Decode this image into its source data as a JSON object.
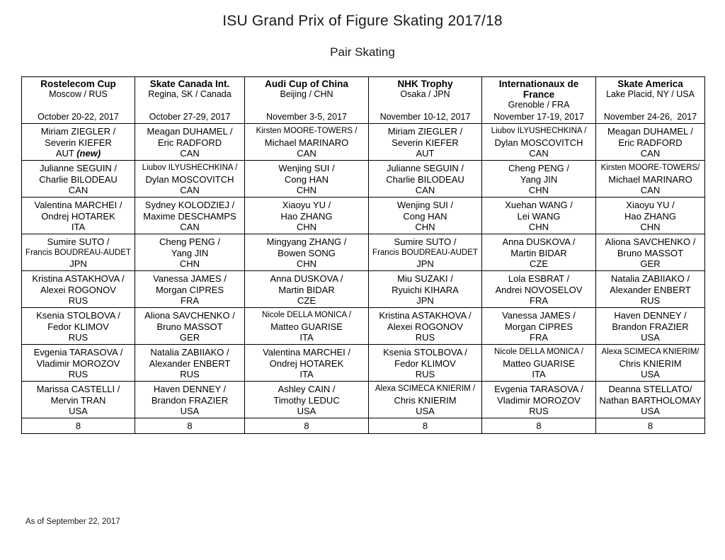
{
  "page": {
    "title": "ISU Grand Prix of Figure Skating 2017/18",
    "subtitle": "Pair Skating",
    "footnote": "As of September 22, 2017"
  },
  "table": {
    "events": [
      {
        "name": "Rostelecom Cup",
        "location": "Moscow / RUS",
        "date": "October 20-22, 2017"
      },
      {
        "name": "Skate Canada Int.",
        "location": "Regina, SK / Canada",
        "date": "October 27-29, 2017"
      },
      {
        "name": "Audi Cup of China",
        "location": "Beijing / CHN",
        "date": "November 3-5, 2017"
      },
      {
        "name": "NHK Trophy",
        "location": "Osaka / JPN",
        "date": "November 10-12, 2017"
      },
      {
        "name": "Internationaux de France",
        "location": "Grenoble / FRA",
        "date": "November 17-19, 2017"
      },
      {
        "name": "Skate America",
        "location": "Lake Placid, NY / USA",
        "date": "November 24-26,  2017"
      }
    ],
    "rows": [
      [
        {
          "lines": [
            "Miriam ZIEGLER /",
            "Severin KIEFER",
            "AUT"
          ],
          "note": "(new)"
        },
        {
          "lines": [
            "Meagan DUHAMEL /",
            "Eric RADFORD",
            "CAN"
          ]
        },
        {
          "lines": [
            "Kirsten MOORE-TOWERS /",
            "Michael MARINARO",
            "CAN"
          ]
        },
        {
          "lines": [
            "Miriam ZIEGLER /",
            "Severin KIEFER",
            "AUT"
          ]
        },
        {
          "lines": [
            "Liubov ILYUSHECHKINA /",
            "Dylan MOSCOVITCH",
            "CAN"
          ]
        },
        {
          "lines": [
            "Meagan DUHAMEL /",
            "Eric RADFORD",
            "CAN"
          ]
        }
      ],
      [
        {
          "lines": [
            "Julianne SEGUIN /",
            "Charlie BILODEAU",
            "CAN"
          ]
        },
        {
          "lines": [
            "Liubov ILYUSHECHKINA /",
            "Dylan MOSCOVITCH",
            "CAN"
          ]
        },
        {
          "lines": [
            "Wenjing SUI /",
            "Cong HAN",
            "CHN"
          ]
        },
        {
          "lines": [
            "Julianne SEGUIN /",
            "Charlie BILODEAU",
            "CAN"
          ]
        },
        {
          "lines": [
            "Cheng PENG /",
            "Yang JIN",
            "CHN"
          ]
        },
        {
          "lines": [
            "Kirsten MOORE-TOWERS/",
            "Michael MARINARO",
            "CAN"
          ]
        }
      ],
      [
        {
          "lines": [
            "Valentina MARCHEI /",
            "Ondrej HOTAREK",
            "ITA"
          ]
        },
        {
          "lines": [
            "Sydney KOLODZIEJ /",
            "Maxime DESCHAMPS",
            "CAN"
          ]
        },
        {
          "lines": [
            "Xiaoyu YU /",
            "Hao ZHANG",
            "CHN"
          ]
        },
        {
          "lines": [
            "Wenjing SUI /",
            "Cong HAN",
            "CHN"
          ]
        },
        {
          "lines": [
            "Xuehan WANG /",
            "Lei WANG",
            "CHN"
          ]
        },
        {
          "lines": [
            "Xiaoyu YU /",
            "Hao ZHANG",
            "CHN"
          ]
        }
      ],
      [
        {
          "lines": [
            "Sumire SUTO /",
            "Francis BOUDREAU-AUDET",
            "JPN"
          ]
        },
        {
          "lines": [
            "Cheng PENG /",
            "Yang JIN",
            "CHN"
          ]
        },
        {
          "lines": [
            "Mingyang ZHANG /",
            "Bowen SONG",
            "CHN"
          ]
        },
        {
          "lines": [
            "Sumire SUTO /",
            "Francis BOUDREAU-AUDET",
            "JPN"
          ]
        },
        {
          "lines": [
            "Anna DUSKOVA /",
            "Martin BIDAR",
            "CZE"
          ]
        },
        {
          "lines": [
            "Aliona SAVCHENKO /",
            "Bruno MASSOT",
            "GER"
          ]
        }
      ],
      [
        {
          "lines": [
            "Kristina ASTAKHOVA /",
            "Alexei ROGONOV",
            "RUS"
          ]
        },
        {
          "lines": [
            "Vanessa JAMES /",
            "Morgan CIPRES",
            "FRA"
          ]
        },
        {
          "lines": [
            "Anna DUSKOVA /",
            "Martin BIDAR",
            "CZE"
          ]
        },
        {
          "lines": [
            "Miu SUZAKI /",
            "Ryuichi KIHARA",
            "JPN"
          ]
        },
        {
          "lines": [
            "Lola ESBRAT /",
            "Andrei NOVOSELOV",
            "FRA"
          ]
        },
        {
          "lines": [
            "Natalia ZABIIAKO /",
            "Alexander ENBERT",
            "RUS"
          ]
        }
      ],
      [
        {
          "lines": [
            "Ksenia STOLBOVA /",
            "Fedor KLIMOV",
            "RUS"
          ]
        },
        {
          "lines": [
            "Aliona SAVCHENKO /",
            "Bruno MASSOT",
            "GER"
          ]
        },
        {
          "lines": [
            "Nicole DELLA MONICA /",
            "Matteo GUARISE",
            "ITA"
          ]
        },
        {
          "lines": [
            "Kristina ASTAKHOVA /",
            "Alexei ROGONOV",
            "RUS"
          ]
        },
        {
          "lines": [
            "Vanessa JAMES /",
            "Morgan CIPRES",
            "FRA"
          ]
        },
        {
          "lines": [
            "Haven DENNEY /",
            "Brandon FRAZIER",
            "USA"
          ]
        }
      ],
      [
        {
          "lines": [
            "Evgenia TARASOVA /",
            "Vladimir MOROZOV",
            "RUS"
          ]
        },
        {
          "lines": [
            "Natalia ZABIIAKO /",
            "Alexander ENBERT",
            "RUS"
          ]
        },
        {
          "lines": [
            "Valentina MARCHEI /",
            "Ondrej HOTAREK",
            "ITA"
          ]
        },
        {
          "lines": [
            "Ksenia STOLBOVA /",
            "Fedor KLIMOV",
            "RUS"
          ]
        },
        {
          "lines": [
            "Nicole DELLA MONICA /",
            "Matteo GUARISE",
            "ITA"
          ]
        },
        {
          "lines": [
            "Alexa SCIMECA KNIERIM/",
            "Chris KNIERIM",
            "USA"
          ]
        }
      ],
      [
        {
          "lines": [
            "Marissa CASTELLI /",
            "Mervin TRAN",
            "USA"
          ]
        },
        {
          "lines": [
            "Haven DENNEY /",
            "Brandon FRAZIER",
            "USA"
          ]
        },
        {
          "lines": [
            "Ashley CAIN /",
            "Timothy LEDUC",
            "USA"
          ]
        },
        {
          "lines": [
            "Alexa SCIMECA KNIERIM /",
            "Chris KNIERIM",
            "USA"
          ]
        },
        {
          "lines": [
            "Evgenia TARASOVA /",
            "Vladimir MOROZOV",
            "RUS"
          ]
        },
        {
          "lines": [
            "Deanna STELLATO/",
            "Nathan BARTHOLOMAY",
            "USA"
          ]
        }
      ]
    ],
    "totals": [
      "8",
      "8",
      "8",
      "8",
      "8",
      "8"
    ]
  }
}
